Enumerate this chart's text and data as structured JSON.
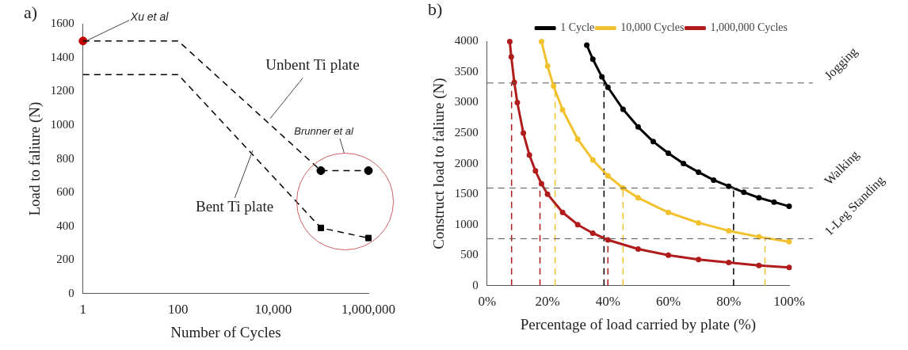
{
  "chart_data": [
    {
      "type": "line",
      "title": "a)",
      "xlabel": "Number of Cycles",
      "ylabel": "Load to faliure (N)",
      "log": "x",
      "xlim": [
        1,
        1000000
      ],
      "xticks": [
        1,
        100,
        {
          "value": 10000,
          "label": "10,000"
        },
        {
          "value": 1000000,
          "label": "1,000,000"
        }
      ],
      "ylim": [
        0,
        1600
      ],
      "yticks": [
        0,
        200,
        400,
        600,
        800,
        1000,
        1200,
        1400,
        1600
      ],
      "series": [
        {
          "color": "#000000",
          "line_style": "dashed",
          "marker": "none",
          "x": [
            1,
            100,
            100000,
            1000000
          ],
          "values": [
            1500,
            1500,
            730,
            730
          ]
        },
        {
          "color": "#000000",
          "line_style": "dashed",
          "marker": "none",
          "x": [
            1,
            100,
            100000,
            1000000
          ],
          "values": [
            1300,
            1300,
            390,
            330
          ]
        },
        {
          "type": "scatter",
          "color": "#000000",
          "marker": "circle",
          "x": [
            100000,
            1000000
          ],
          "values": [
            730,
            730
          ]
        },
        {
          "type": "scatter",
          "color": "#000000",
          "marker": "square",
          "x": [
            100000,
            1000000
          ],
          "values": [
            390,
            330
          ]
        },
        {
          "type": "scatter",
          "color": "#c00000",
          "marker": "circle",
          "x": [
            1
          ],
          "values": [
            1500
          ]
        }
      ],
      "annotations": [
        {
          "text": "Xu et al",
          "x": 1,
          "y": 1500
        },
        "Unbent Ti plate",
        {
          "text": "Bent Ti plate",
          "x": 3700,
          "y": 850
        },
        "Brunner et al"
      ]
    },
    {
      "type": "line",
      "title": "b)",
      "xlabel": "Percentage of load carried by plate (%)",
      "ylabel": "Construct load to faliure (N)",
      "legend": "top",
      "xlim": [
        0,
        100
      ],
      "xticks": [
        {
          "value": 0,
          "label": "0%"
        },
        {
          "value": 20,
          "label": "20%"
        },
        {
          "value": 40,
          "label": "40%"
        },
        {
          "value": 60,
          "label": "60%"
        },
        {
          "value": 80,
          "label": "80%"
        },
        {
          "value": 100,
          "label": "100%"
        }
      ],
      "ylim": [
        0,
        4000
      ],
      "yticks": [
        0,
        500,
        1000,
        1500,
        2000,
        2500,
        3000,
        3500,
        4000
      ],
      "series": [
        {
          "name": "1 Cycle",
          "color": "#000000",
          "marker": "circle",
          "x": [
            33,
            35,
            38,
            40,
            45,
            50,
            55,
            60,
            65,
            70,
            75,
            80,
            85,
            90,
            95,
            100
          ],
          "values": [
            3940,
            3710,
            3420,
            3250,
            2890,
            2600,
            2360,
            2170,
            2000,
            1860,
            1730,
            1630,
            1530,
            1440,
            1370,
            1300
          ]
        },
        {
          "name": "10,000 Cycles",
          "color": "#f2c12e",
          "marker": "circle",
          "x": [
            18,
            20,
            22,
            25,
            30,
            35,
            40,
            45,
            50,
            60,
            70,
            80,
            90,
            100
          ],
          "values": [
            4000,
            3600,
            3270,
            2880,
            2400,
            2060,
            1800,
            1600,
            1440,
            1200,
            1030,
            900,
            800,
            720
          ]
        },
        {
          "name": "1,000,000 Cycles",
          "color": "#b01c1c",
          "marker": "circle",
          "x": [
            7.5,
            8,
            9,
            10,
            12,
            14,
            16,
            18,
            20,
            25,
            30,
            35,
            40,
            50,
            60,
            70,
            80,
            90,
            100
          ],
          "values": [
            4000,
            3750,
            3330,
            3000,
            2500,
            2140,
            1880,
            1670,
            1500,
            1200,
            1000,
            860,
            750,
            600,
            500,
            430,
            380,
            330,
            300
          ]
        },
        {
          "color": "#b01c1c",
          "line_style": "dashed",
          "marker": "none",
          "x": [
            8.1,
            8.1
          ],
          "values": [
            0,
            3320
          ]
        },
        {
          "color": "#b01c1c",
          "line_style": "dashed",
          "marker": "none",
          "x": [
            17.5,
            17.5
          ],
          "values": [
            0,
            1600
          ]
        },
        {
          "color": "#b01c1c",
          "line_style": "dashed",
          "marker": "none",
          "x": [
            40,
            40
          ],
          "values": [
            0,
            770
          ]
        },
        {
          "color": "#f2c12e",
          "line_style": "dashed",
          "marker": "none",
          "x": [
            22.5,
            22.5
          ],
          "values": [
            0,
            3320
          ]
        },
        {
          "color": "#f2c12e",
          "line_style": "dashed",
          "marker": "none",
          "x": [
            45,
            45
          ],
          "values": [
            0,
            1600
          ]
        },
        {
          "color": "#f2c12e",
          "line_style": "dashed",
          "marker": "none",
          "x": [
            92,
            92
          ],
          "values": [
            0,
            770
          ]
        },
        {
          "color": "#000000",
          "line_style": "dashed",
          "marker": "none",
          "x": [
            38.7,
            38.7
          ],
          "values": [
            0,
            3320
          ]
        },
        {
          "color": "#000000",
          "line_style": "dashed",
          "marker": "none",
          "x": [
            81.6,
            81.6
          ],
          "values": [
            0,
            1600
          ]
        }
      ],
      "ref_lines": [
        {
          "axis": "y",
          "value": 3320,
          "label": "Jogging",
          "color": "#555555",
          "line_style": "dashed"
        },
        {
          "axis": "y",
          "value": 1600,
          "label": "Walking",
          "color": "#555555",
          "line_style": "dashed"
        },
        {
          "axis": "y",
          "value": 770,
          "label": "1-Leg Standing",
          "color": "#555555",
          "line_style": "dashed"
        }
      ]
    }
  ]
}
